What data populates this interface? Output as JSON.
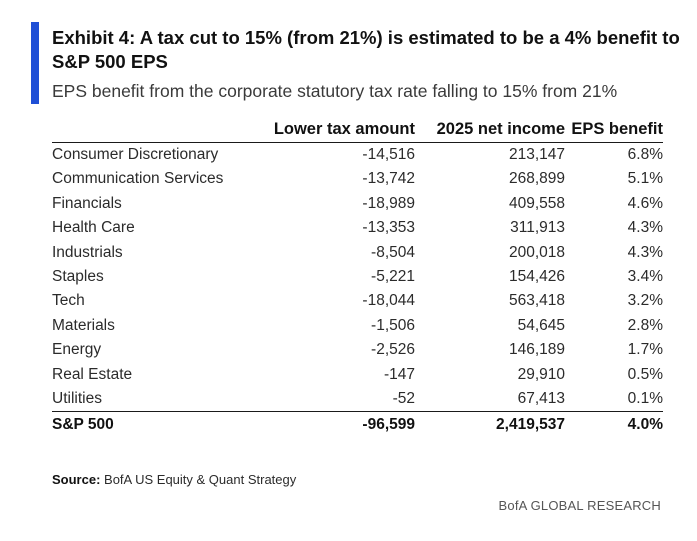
{
  "title": "Exhibit 4: A tax cut to 15% (from 21%) is estimated to be a 4% benefit to S&P 500 EPS",
  "subtitle": "EPS benefit from the corporate statutory tax rate falling to 15% from 21%",
  "table": {
    "headers": {
      "sector": "",
      "lower_tax_amount": "Lower tax amount",
      "net_income": "2025 net income",
      "eps_benefit": "EPS benefit"
    },
    "rows": [
      {
        "sector": "Consumer Discretionary",
        "lower_tax_amount": "-14,516",
        "net_income": "213,147",
        "eps_benefit": "6.8%"
      },
      {
        "sector": "Communication Services",
        "lower_tax_amount": "-13,742",
        "net_income": "268,899",
        "eps_benefit": "5.1%"
      },
      {
        "sector": "Financials",
        "lower_tax_amount": "-18,989",
        "net_income": "409,558",
        "eps_benefit": "4.6%"
      },
      {
        "sector": "Health Care",
        "lower_tax_amount": "-13,353",
        "net_income": "311,913",
        "eps_benefit": "4.3%"
      },
      {
        "sector": "Industrials",
        "lower_tax_amount": "-8,504",
        "net_income": "200,018",
        "eps_benefit": "4.3%"
      },
      {
        "sector": "Staples",
        "lower_tax_amount": "-5,221",
        "net_income": "154,426",
        "eps_benefit": "3.4%"
      },
      {
        "sector": "Tech",
        "lower_tax_amount": "-18,044",
        "net_income": "563,418",
        "eps_benefit": "3.2%"
      },
      {
        "sector": "Materials",
        "lower_tax_amount": "-1,506",
        "net_income": "54,645",
        "eps_benefit": "2.8%"
      },
      {
        "sector": "Energy",
        "lower_tax_amount": "-2,526",
        "net_income": "146,189",
        "eps_benefit": "1.7%"
      },
      {
        "sector": "Real Estate",
        "lower_tax_amount": "-147",
        "net_income": "29,910",
        "eps_benefit": "0.5%"
      },
      {
        "sector": "Utilities",
        "lower_tax_amount": "-52",
        "net_income": "67,413",
        "eps_benefit": "0.1%"
      }
    ],
    "total": {
      "sector": "S&P 500",
      "lower_tax_amount": "-96,599",
      "net_income": "2,419,537",
      "eps_benefit": "4.0%"
    }
  },
  "source": {
    "label": "Source:",
    "text": "BofA US Equity & Quant Strategy"
  },
  "brand": "BofA GLOBAL RESEARCH",
  "colors": {
    "accent": "#1f4fd6",
    "text": "#1a1a1a"
  }
}
